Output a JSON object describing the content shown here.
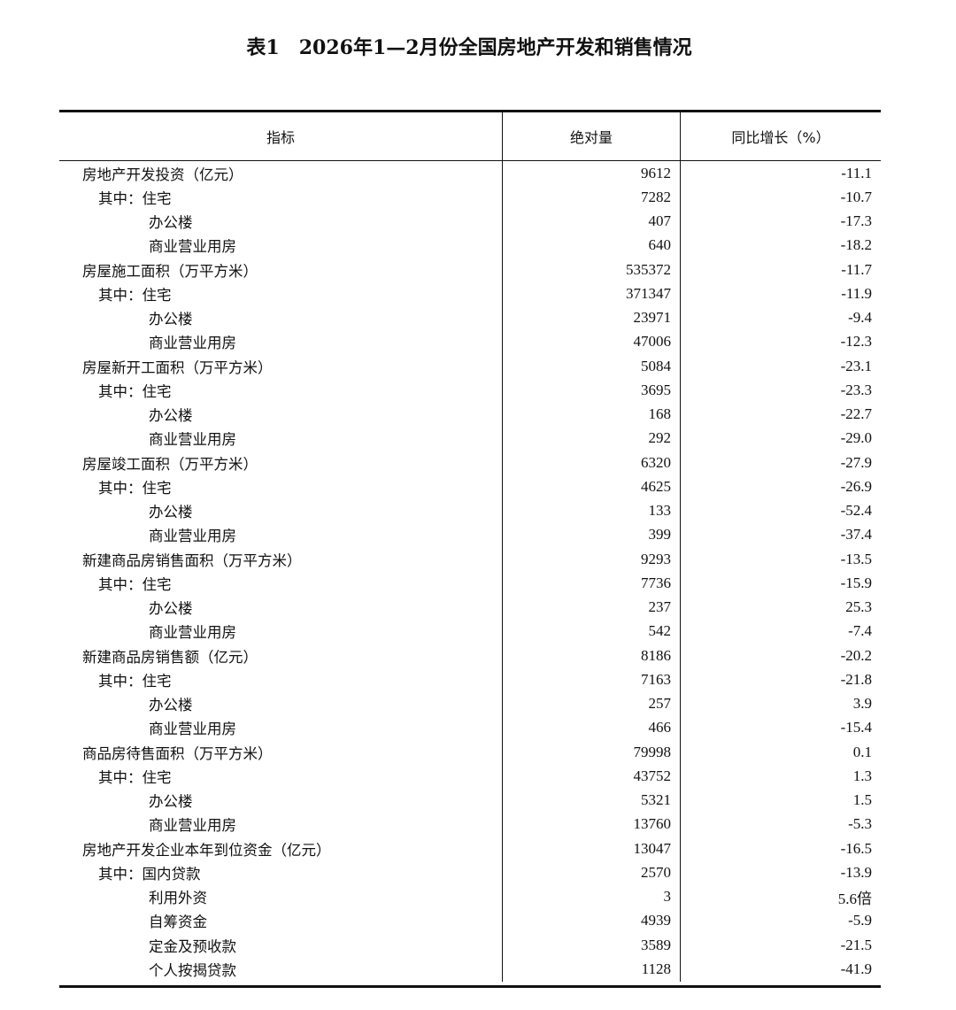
{
  "title": "表1　2026年1—2月份全国房地产开发和销售情况",
  "headers": [
    "指标",
    "绝对量",
    "同比增长（%）"
  ],
  "rows": [
    {
      "label": "房地产开发投资（亿元）",
      "level": 0,
      "value": "9612",
      "growth": "-11.1"
    },
    {
      "label": "其中：住宅",
      "level": 1,
      "value": "7282",
      "growth": "-10.7"
    },
    {
      "label": "办公楼",
      "level": 2,
      "value": "407",
      "growth": "-17.3"
    },
    {
      "label": "商业营业用房",
      "level": 2,
      "value": "640",
      "growth": "-18.2"
    },
    {
      "label": "房屋施工面积（万平方米）",
      "level": 0,
      "value": "535372",
      "growth": "-11.7"
    },
    {
      "label": "其中：住宅",
      "level": 1,
      "value": "371347",
      "growth": "-11.9"
    },
    {
      "label": "办公楼",
      "level": 2,
      "value": "23971",
      "growth": "-9.4"
    },
    {
      "label": "商业营业用房",
      "level": 2,
      "value": "47006",
      "growth": "-12.3"
    },
    {
      "label": "房屋新开工面积（万平方米）",
      "level": 0,
      "value": "5084",
      "growth": "-23.1"
    },
    {
      "label": "其中：住宅",
      "level": 1,
      "value": "3695",
      "growth": "-23.3"
    },
    {
      "label": "办公楼",
      "level": 2,
      "value": "168",
      "growth": "-22.7"
    },
    {
      "label": "商业营业用房",
      "level": 2,
      "value": "292",
      "growth": "-29.0"
    },
    {
      "label": "房屋竣工面积（万平方米）",
      "level": 0,
      "value": "6320",
      "growth": "-27.9"
    },
    {
      "label": "其中：住宅",
      "level": 1,
      "value": "4625",
      "growth": "-26.9"
    },
    {
      "label": "办公楼",
      "level": 2,
      "value": "133",
      "growth": "-52.4"
    },
    {
      "label": "商业营业用房",
      "level": 2,
      "value": "399",
      "growth": "-37.4"
    },
    {
      "label": "新建商品房销售面积（万平方米）",
      "level": 0,
      "value": "9293",
      "growth": "-13.5"
    },
    {
      "label": "其中：住宅",
      "level": 1,
      "value": "7736",
      "growth": "-15.9"
    },
    {
      "label": "办公楼",
      "level": 2,
      "value": "237",
      "growth": "25.3"
    },
    {
      "label": "商业营业用房",
      "level": 2,
      "value": "542",
      "growth": "-7.4"
    },
    {
      "label": "新建商品房销售额（亿元）",
      "level": 0,
      "value": "8186",
      "growth": "-20.2"
    },
    {
      "label": "其中：住宅",
      "level": 1,
      "value": "7163",
      "growth": "-21.8"
    },
    {
      "label": "办公楼",
      "level": 2,
      "value": "257",
      "growth": "3.9"
    },
    {
      "label": "商业营业用房",
      "level": 2,
      "value": "466",
      "growth": "-15.4"
    },
    {
      "label": "商品房待售面积（万平方米）",
      "level": 0,
      "value": "79998",
      "growth": "0.1"
    },
    {
      "label": "其中：住宅",
      "level": 1,
      "value": "43752",
      "growth": "1.3"
    },
    {
      "label": "办公楼",
      "level": 2,
      "value": "5321",
      "growth": "1.5"
    },
    {
      "label": "商业营业用房",
      "level": 2,
      "value": "13760",
      "growth": "-5.3"
    },
    {
      "label": "房地产开发企业本年到位资金（亿元）",
      "level": 0,
      "value": "13047",
      "growth": "-16.5"
    },
    {
      "label": "其中：国内贷款",
      "level": 1,
      "value": "2570",
      "growth": "-13.9"
    },
    {
      "label": "利用外资",
      "level": 2,
      "value": "3",
      "growth": "5.6倍"
    },
    {
      "label": "自筹资金",
      "level": 2,
      "value": "4939",
      "growth": "-5.9"
    },
    {
      "label": "定金及预收款",
      "level": 2,
      "value": "3589",
      "growth": "-21.5"
    },
    {
      "label": "个人按揭贷款",
      "level": 2,
      "value": "1128",
      "growth": "-41.9"
    }
  ]
}
